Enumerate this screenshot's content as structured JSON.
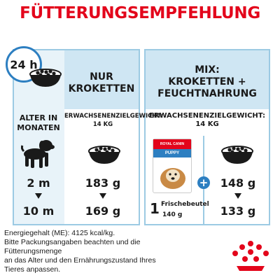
{
  "title": "FÜTTERUNGSEMPFEHLUNG",
  "clock_label": "24 h",
  "columns": {
    "dry_only": {
      "header_line1": "NUR",
      "header_line2": "KROKETTEN"
    },
    "mix": {
      "header_line1": "MIX:",
      "header_line2": "KROKETTEN +",
      "header_line3": "FEUCHTNAHRUNG"
    }
  },
  "age_header_line1": "ALTER IN",
  "age_header_line2": "MONATEN",
  "adult_weight_label": "ERWACHSENENZIELGEWICHT:",
  "adult_weight_value": "14 KG",
  "rows": [
    {
      "age": "2 m",
      "dry_only": "183 g",
      "mix": "148 g"
    },
    {
      "age": "10 m",
      "dry_only": "169 g",
      "mix": "133 g"
    }
  ],
  "pouch": {
    "count": "1",
    "label": "Frischebeutel",
    "weight": "140 g",
    "brand": "ROYAL CANIN",
    "variant": "PUPPY"
  },
  "footer": [
    "Energiegehalt (ME): 4125 kcal/kg.",
    "Bitte Packungsangaben beachten und die",
    "Fütterungsmenge",
    "an das Alter und den Ernährungszustand Ihres",
    "Tieres anpassen."
  ],
  "colors": {
    "accent_red": "#e3051b",
    "accent_blue": "#2d7fc1",
    "panel_light": "#e8f3f9",
    "border": "#9ccae3"
  }
}
